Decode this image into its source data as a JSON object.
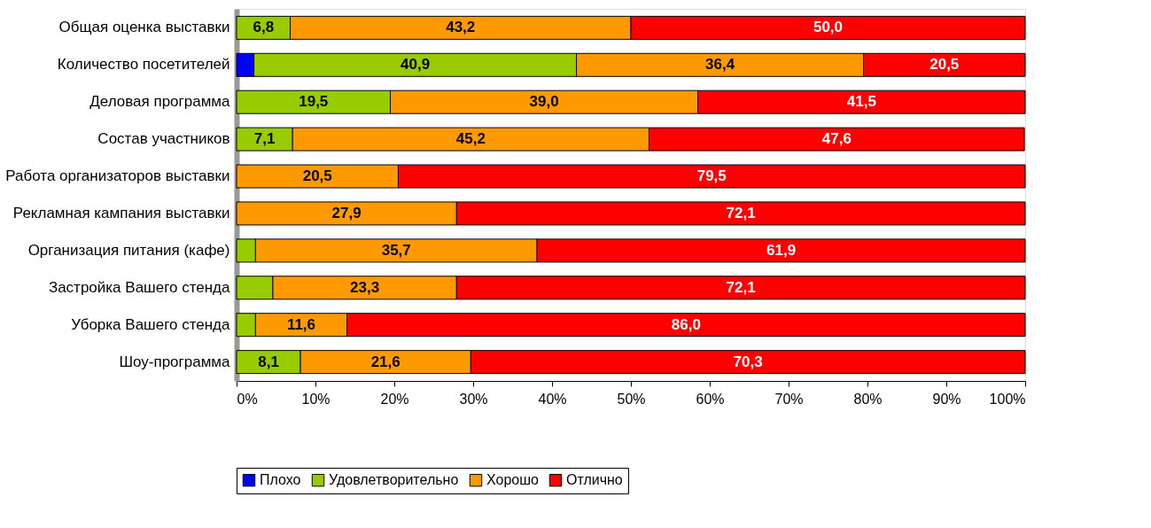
{
  "chart_data": {
    "type": "bar",
    "orientation": "horizontal",
    "stacked": true,
    "categories": [
      "Общая оценка выставки",
      "Количество посетителей",
      "Деловая программа",
      "Состав участников",
      "Работа организаторов выставки",
      "Рекламная кампания выставки",
      "Организация питания (кафе)",
      "Застройка Вашего стенда",
      "Уборка Вашего стенда",
      "Шоу-программа"
    ],
    "series": [
      {
        "name": "Плохо",
        "color": "#0000ff",
        "values": [
          null,
          2.2,
          null,
          null,
          null,
          null,
          null,
          null,
          null,
          null
        ],
        "value_labels": [
          null,
          null,
          null,
          null,
          null,
          null,
          null,
          null,
          null,
          null
        ]
      },
      {
        "name": "Удовлетворительно",
        "color": "#99cc00",
        "values": [
          6.8,
          40.9,
          19.5,
          7.1,
          null,
          null,
          2.4,
          4.6,
          2.4,
          8.1
        ],
        "value_labels": [
          "6,8",
          "40,9",
          "19,5",
          "7,1",
          null,
          null,
          null,
          null,
          null,
          "8,1"
        ]
      },
      {
        "name": "Хорошо",
        "color": "#ff9900",
        "values": [
          43.2,
          36.4,
          39.0,
          45.2,
          20.5,
          27.9,
          35.7,
          23.3,
          11.6,
          21.6
        ],
        "value_labels": [
          "43,2",
          "36,4",
          "39,0",
          "45,2",
          "20,5",
          "27,9",
          "35,7",
          "23,3",
          "11,6",
          "21,6"
        ]
      },
      {
        "name": "Отлично",
        "color": "#ff0000",
        "values": [
          50.0,
          20.5,
          41.5,
          47.6,
          79.5,
          72.1,
          61.9,
          72.1,
          86.0,
          70.3
        ],
        "value_labels": [
          "50,0",
          "20,5",
          "41,5",
          "47,6",
          "79,5",
          "72,1",
          "61,9",
          "72,1",
          "86,0",
          "70,3"
        ]
      }
    ],
    "xlim": [
      0,
      100
    ],
    "xticks": [
      {
        "value": 0,
        "label": "0%"
      },
      {
        "value": 10,
        "label": "10%"
      },
      {
        "value": 20,
        "label": "20%"
      },
      {
        "value": 30,
        "label": "30%"
      },
      {
        "value": 40,
        "label": "40%"
      },
      {
        "value": 50,
        "label": "50%"
      },
      {
        "value": 60,
        "label": "60%"
      },
      {
        "value": 70,
        "label": "70%"
      },
      {
        "value": 80,
        "label": "80%"
      },
      {
        "value": 90,
        "label": "90%"
      },
      {
        "value": 100,
        "label": "100%"
      }
    ],
    "grid": false,
    "legend": "bottom"
  }
}
